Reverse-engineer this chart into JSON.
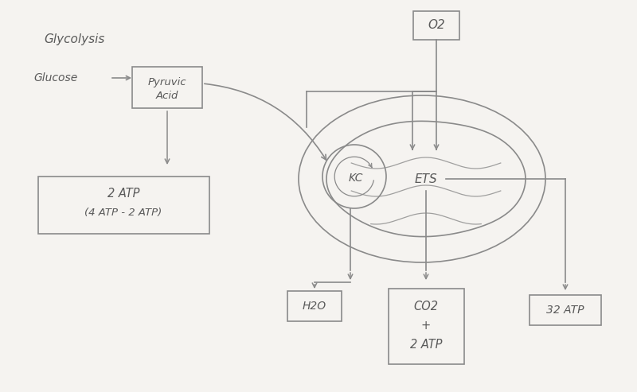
{
  "bg_color": "#f5f3f0",
  "line_color": "#8a8a8a",
  "text_color": "#5a5a5a",
  "title_glycolysis": "Glycolysis",
  "label_glucose": "Glucose",
  "label_pyruvic": "Pyruvic\nAcid",
  "label_atp2_line1": "2 ATP",
  "label_atp2_line2": "(4 ATP - 2 ATP)",
  "label_o2": "O2",
  "label_kc": "KC",
  "label_ets": "ETS",
  "label_h2o": "H2O",
  "label_co2_line1": "CO2",
  "label_co2_line2": "+",
  "label_co2_line3": "2 ATP",
  "label_32atp": "32 ATP",
  "figsize": [
    8.0,
    4.93
  ],
  "dpi": 100
}
